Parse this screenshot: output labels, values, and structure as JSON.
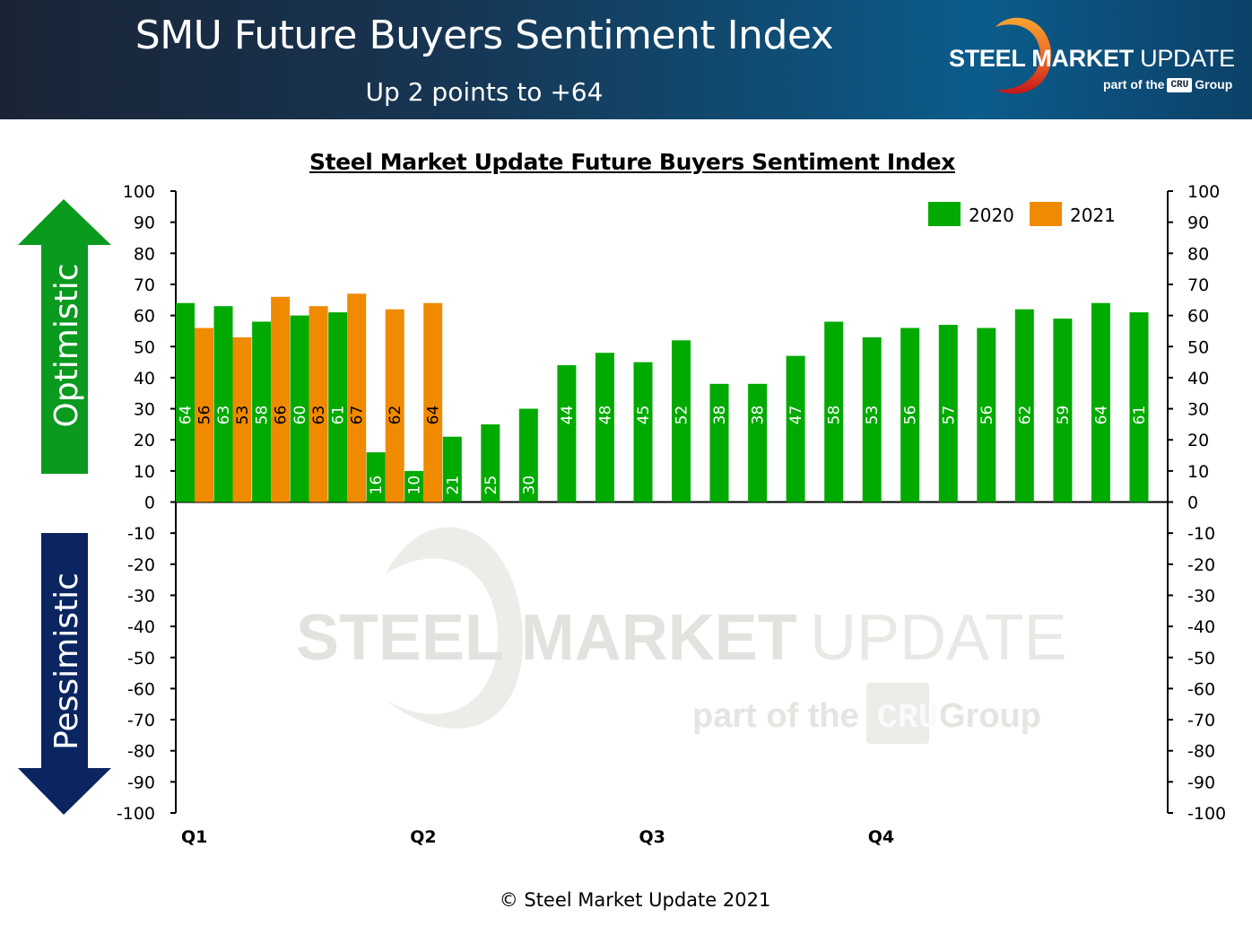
{
  "banner": {
    "title": "SMU Future Buyers Sentiment Index",
    "subtitle": "Up 2 points to +64",
    "logo": {
      "brand_bold": "STEEL MARKET",
      "brand_light": "UPDATE",
      "sub_prefix": "part of the",
      "sub_badge": "CRU",
      "sub_suffix": "Group"
    }
  },
  "side_labels": {
    "up": "Optimistic",
    "down": "Pessimistic"
  },
  "watermark": {
    "bold": "STEEL MARKET",
    "light": "UPDATE",
    "sub_prefix": "part of the",
    "sub_badge": "CRU",
    "sub_suffix": "Group"
  },
  "footer": "© Steel Market Update 2021",
  "colors": {
    "series_2020": "#00aa00",
    "series_2021": "#f08a00",
    "arrow_up": "#0a9a1e",
    "arrow_down": "#0b2560"
  },
  "chart_data": {
    "type": "bar",
    "title": "Steel Market Update Future Buyers Sentiment Index",
    "xlabel": "",
    "ylabel": "",
    "ylim": [
      -100,
      100
    ],
    "yticks": [
      100,
      90,
      80,
      70,
      60,
      50,
      40,
      30,
      20,
      10,
      0,
      -10,
      -20,
      -30,
      -40,
      -50,
      -60,
      -70,
      -80,
      -90,
      -100
    ],
    "grid": false,
    "legend_position": "top-right",
    "quarter_labels": [
      {
        "label": "Q1",
        "index": 0
      },
      {
        "label": "Q2",
        "index": 6
      },
      {
        "label": "Q3",
        "index": 12
      },
      {
        "label": "Q4",
        "index": 18
      }
    ],
    "series": [
      {
        "name": "2020",
        "values": [
          64,
          63,
          58,
          60,
          61,
          16,
          10,
          21,
          25,
          30,
          44,
          48,
          45,
          52,
          38,
          38,
          47,
          58,
          53,
          56,
          57,
          56,
          62,
          59,
          64,
          61
        ]
      },
      {
        "name": "2021",
        "values": [
          56,
          53,
          66,
          63,
          67,
          62,
          64
        ]
      }
    ]
  }
}
